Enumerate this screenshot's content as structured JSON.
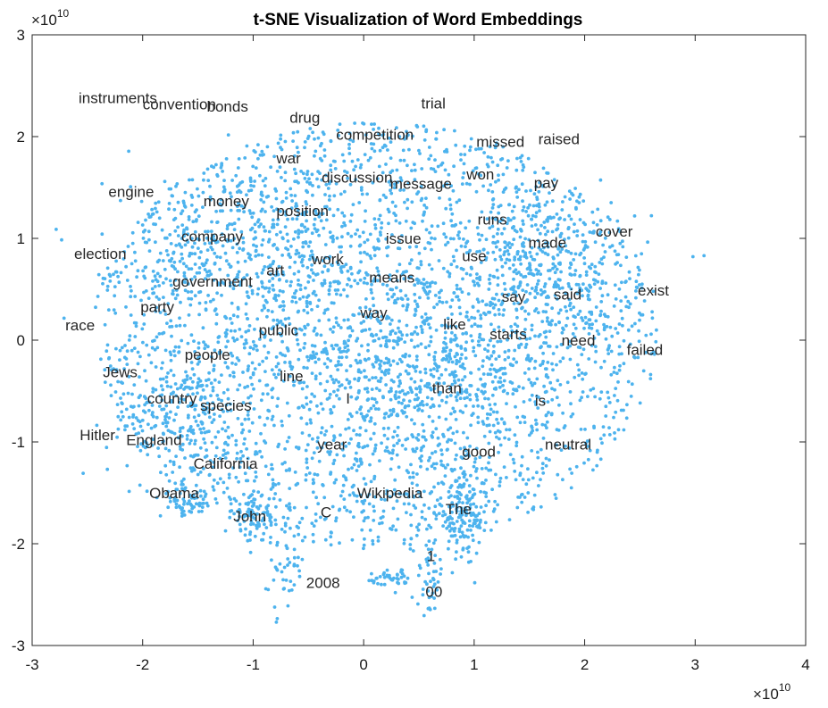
{
  "chart_data": {
    "type": "scatter",
    "title": "t-SNE Visualization of Word Embeddings",
    "xlabel": "",
    "ylabel": "",
    "x_multiplier": "×10^10",
    "y_multiplier": "×10^10",
    "xlim": [
      -3,
      4
    ],
    "ylim": [
      -3,
      3
    ],
    "x_ticks": [
      "-3",
      "-2",
      "-1",
      "0",
      "1",
      "2",
      "3",
      "4"
    ],
    "y_ticks": [
      "-3",
      "-2",
      "-1",
      "0",
      "1",
      "2",
      "3"
    ],
    "marker_color": "#4DB3EE",
    "grid": false,
    "points_note_x_units": "x10^10",
    "annotations": [
      {
        "text": "instruments",
        "x": -2.58,
        "y": 2.38
      },
      {
        "text": "convention",
        "x": -2.0,
        "y": 2.32
      },
      {
        "text": "bonds",
        "x": -1.42,
        "y": 2.3
      },
      {
        "text": "trial",
        "x": 0.52,
        "y": 2.33
      },
      {
        "text": "drug",
        "x": -0.67,
        "y": 2.19
      },
      {
        "text": "competition",
        "x": -0.25,
        "y": 2.02
      },
      {
        "text": "missed",
        "x": 1.02,
        "y": 1.95
      },
      {
        "text": "raised",
        "x": 1.58,
        "y": 1.98
      },
      {
        "text": "war",
        "x": -0.79,
        "y": 1.79
      },
      {
        "text": "discussion",
        "x": -0.38,
        "y": 1.6
      },
      {
        "text": "message",
        "x": 0.24,
        "y": 1.54
      },
      {
        "text": "won",
        "x": 0.93,
        "y": 1.63
      },
      {
        "text": "pay",
        "x": 1.54,
        "y": 1.55
      },
      {
        "text": "engine",
        "x": -2.31,
        "y": 1.46
      },
      {
        "text": "money",
        "x": -1.45,
        "y": 1.37
      },
      {
        "text": "position",
        "x": -0.79,
        "y": 1.27
      },
      {
        "text": "runs",
        "x": 1.03,
        "y": 1.19
      },
      {
        "text": "cover",
        "x": 2.1,
        "y": 1.07
      },
      {
        "text": "company",
        "x": -1.65,
        "y": 1.02
      },
      {
        "text": "issue",
        "x": 0.2,
        "y": 1.0
      },
      {
        "text": "made",
        "x": 1.49,
        "y": 0.96
      },
      {
        "text": "election",
        "x": -2.62,
        "y": 0.85
      },
      {
        "text": "work",
        "x": -0.47,
        "y": 0.8
      },
      {
        "text": "use",
        "x": 0.89,
        "y": 0.83
      },
      {
        "text": "art",
        "x": -0.88,
        "y": 0.69
      },
      {
        "text": "means",
        "x": 0.05,
        "y": 0.62
      },
      {
        "text": "government",
        "x": -1.73,
        "y": 0.58
      },
      {
        "text": "exist",
        "x": 2.48,
        "y": 0.49
      },
      {
        "text": "say",
        "x": 1.25,
        "y": 0.43
      },
      {
        "text": "said",
        "x": 1.72,
        "y": 0.45
      },
      {
        "text": "party",
        "x": -2.02,
        "y": 0.33
      },
      {
        "text": "way",
        "x": -0.03,
        "y": 0.27
      },
      {
        "text": "race",
        "x": -2.7,
        "y": 0.15
      },
      {
        "text": "like",
        "x": 0.72,
        "y": 0.16
      },
      {
        "text": "public",
        "x": -0.95,
        "y": 0.1
      },
      {
        "text": "starts",
        "x": 1.14,
        "y": 0.06
      },
      {
        "text": "need",
        "x": 1.79,
        "y": 0.0
      },
      {
        "text": "failed",
        "x": 2.38,
        "y": -0.09
      },
      {
        "text": "people",
        "x": -1.62,
        "y": -0.14
      },
      {
        "text": "Jews",
        "x": -2.36,
        "y": -0.31
      },
      {
        "text": "line",
        "x": -0.76,
        "y": -0.35
      },
      {
        "text": "than",
        "x": 0.62,
        "y": -0.47
      },
      {
        "text": "country",
        "x": -1.96,
        "y": -0.57
      },
      {
        "text": "species",
        "x": -1.48,
        "y": -0.64
      },
      {
        "text": "I",
        "x": -0.16,
        "y": -0.57
      },
      {
        "text": "is",
        "x": 1.55,
        "y": -0.59
      },
      {
        "text": "Hitler",
        "x": -2.57,
        "y": -0.93
      },
      {
        "text": "England",
        "x": -2.15,
        "y": -0.98
      },
      {
        "text": "year",
        "x": -0.42,
        "y": -1.02
      },
      {
        "text": "neutral",
        "x": 1.64,
        "y": -1.02
      },
      {
        "text": "good",
        "x": 0.89,
        "y": -1.09
      },
      {
        "text": "California",
        "x": -1.54,
        "y": -1.21
      },
      {
        "text": "Obama",
        "x": -1.94,
        "y": -1.5
      },
      {
        "text": "Wikipedia",
        "x": -0.06,
        "y": -1.5
      },
      {
        "text": "The",
        "x": 0.74,
        "y": -1.66
      },
      {
        "text": "John",
        "x": -1.18,
        "y": -1.73
      },
      {
        "text": "C",
        "x": -0.39,
        "y": -1.69
      },
      {
        "text": "1",
        "x": 0.57,
        "y": -2.12
      },
      {
        "text": "2008",
        "x": -0.52,
        "y": -2.38
      },
      {
        "text": "00",
        "x": 0.56,
        "y": -2.47
      }
    ]
  }
}
